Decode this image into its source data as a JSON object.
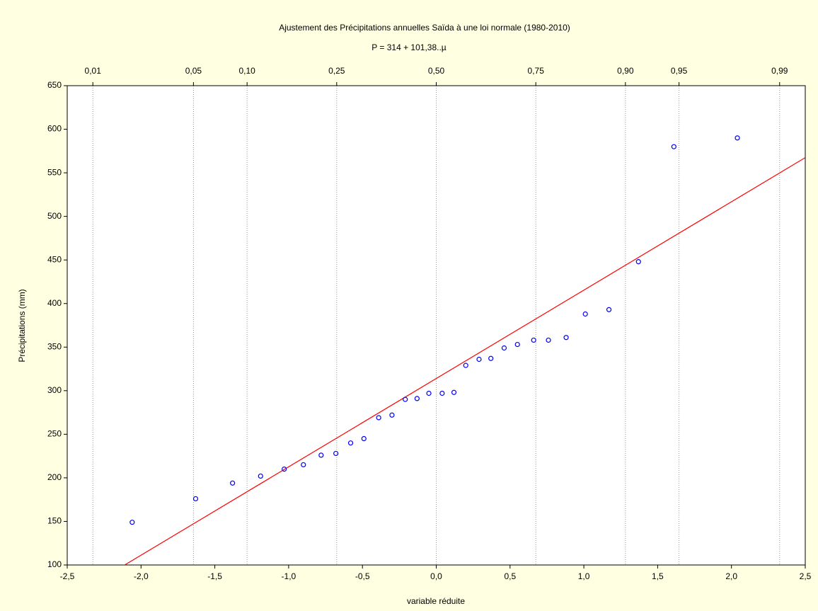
{
  "chart_data": {
    "type": "scatter",
    "title": "Ajustement des Précipitations annuelles Saïda à une loi normale (1980-2010)",
    "subtitle": "P = 314 + 101,38..µ",
    "x_label": "variable réduite",
    "y_label": "Précipitations (mm)",
    "xlim": [
      -2.5,
      2.5
    ],
    "xticks": [
      {
        "value": -2.5,
        "label": "-2,5"
      },
      {
        "value": -2,
        "label": "-2,0"
      },
      {
        "value": -1.5,
        "label": "-1,5"
      },
      {
        "value": -1,
        "label": "-1,0"
      },
      {
        "value": -0.5,
        "label": "-0,5"
      },
      {
        "value": 0,
        "label": "0,0"
      },
      {
        "value": 0.5,
        "label": "0,5"
      },
      {
        "value": 1,
        "label": "1,0"
      },
      {
        "value": 1.5,
        "label": "1,5"
      },
      {
        "value": 2,
        "label": "2,0"
      },
      {
        "value": 2.5,
        "label": "2,5"
      }
    ],
    "ylim": [
      100,
      650
    ],
    "yticks": [
      100,
      150,
      200,
      250,
      300,
      350,
      400,
      450,
      500,
      550,
      600,
      650
    ],
    "x2scale": "normal-probability",
    "x2ticks": [
      {
        "value": 0.01,
        "label": "0,01"
      },
      {
        "value": 0.05,
        "label": "0,05"
      },
      {
        "value": 0.1,
        "label": "0,10"
      },
      {
        "value": 0.25,
        "label": "0,25"
      },
      {
        "value": 0.5,
        "label": "0,50"
      },
      {
        "value": 0.75,
        "label": "0,75"
      },
      {
        "value": 0.9,
        "label": "0,90"
      },
      {
        "value": 0.95,
        "label": "0,95"
      },
      {
        "value": 0.99,
        "label": "0,99"
      }
    ],
    "grid": true,
    "series": [
      {
        "color": "#0000ff",
        "x": [
          -2.06,
          -1.63,
          -1.38,
          -1.19,
          -1.03,
          -0.9,
          -0.78,
          -0.68,
          -0.58,
          -0.49,
          -0.39,
          -0.3,
          -0.21,
          -0.13,
          -0.05,
          0.04,
          0.12,
          0.2,
          0.29,
          0.37,
          0.46,
          0.55,
          0.66,
          0.76,
          0.88,
          1.01,
          1.17,
          1.37,
          1.61,
          2.04
        ],
        "values": [
          149,
          176,
          194,
          202,
          210,
          215,
          226,
          228,
          240,
          245,
          269,
          272,
          290,
          291,
          297,
          297,
          298,
          329,
          336,
          337,
          349,
          353,
          358,
          358,
          361,
          388,
          393,
          448,
          580,
          590
        ]
      }
    ],
    "fit": {
      "intercept": 314,
      "slope": 101.38,
      "color": "#ff0000"
    }
  }
}
